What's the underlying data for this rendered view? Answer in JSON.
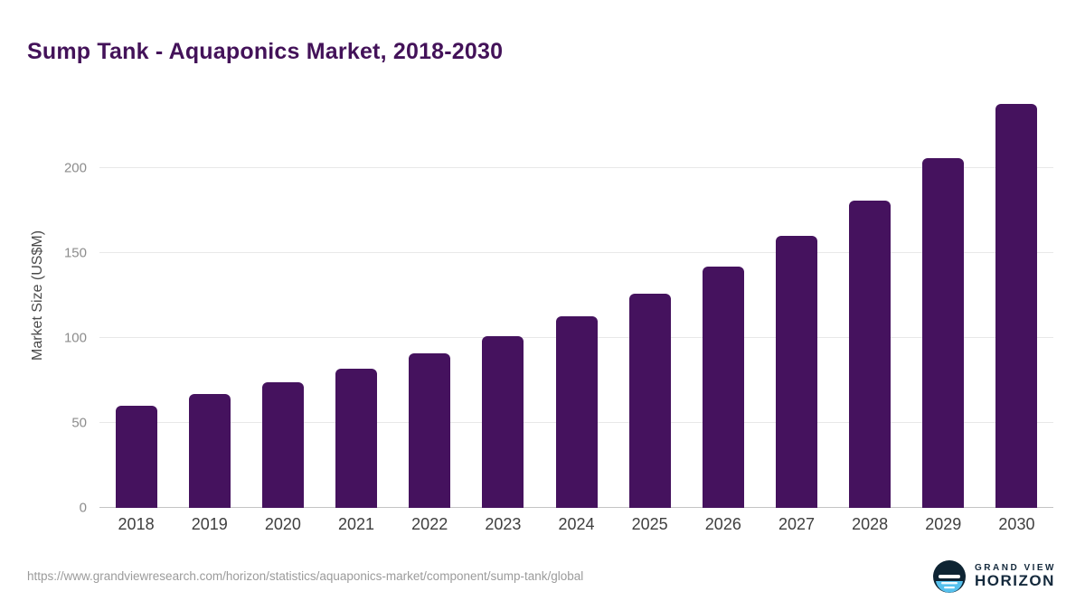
{
  "chart_data": {
    "type": "bar",
    "title": "Sump Tank - Aquaponics Market, 2018-2030",
    "categories": [
      "2018",
      "2019",
      "2020",
      "2021",
      "2022",
      "2023",
      "2024",
      "2025",
      "2026",
      "2027",
      "2028",
      "2029",
      "2030"
    ],
    "values": [
      60,
      67,
      74,
      82,
      91,
      101,
      113,
      126,
      142,
      160,
      181,
      206,
      238
    ],
    "xlabel": "",
    "ylabel": "Market Size (US$M)",
    "ylim": [
      0,
      250
    ],
    "yticks": [
      0,
      50,
      100,
      150,
      200
    ],
    "bar_color": "#45125e",
    "grid": "horizontal",
    "legend": "none"
  },
  "footer": {
    "source_url": "https://www.grandviewresearch.com/horizon/statistics/aquaponics-market/component/sump-tank/global",
    "logo": {
      "line1": "GRAND VIEW",
      "line2": "HORIZON"
    }
  }
}
